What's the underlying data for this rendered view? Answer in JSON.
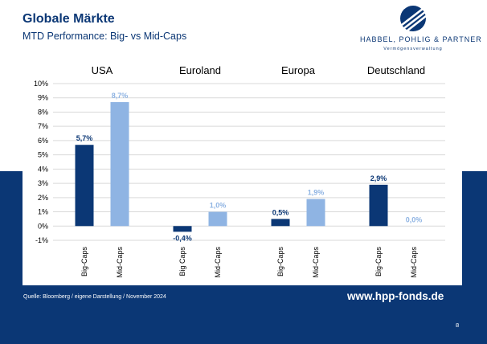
{
  "slide": {
    "title": "Globale Märkte",
    "subtitle": "MTD Performance: Big- vs Mid-Caps",
    "logo": {
      "name": "HABBEL, POHLIG & PARTNER",
      "tagline": "Vermögensverwaltung"
    },
    "source": "Quelle: Bloomberg / eigene Darstellung / November 2024",
    "website": "www.hpp-fonds.de",
    "page_number": "8"
  },
  "colors": {
    "navy": "#0b3775",
    "light_blue": "#8fb4e3",
    "grid": "#d9d9d9",
    "text": "#000000"
  },
  "chart_data": {
    "type": "bar",
    "title": "",
    "xlabel": "",
    "ylabel": "",
    "ylim": [
      -1,
      10
    ],
    "yticks": [
      -1,
      0,
      1,
      2,
      3,
      4,
      5,
      6,
      7,
      8,
      9,
      10
    ],
    "ytick_labels": [
      "-1%",
      "0%",
      "1%",
      "2%",
      "3%",
      "4%",
      "5%",
      "6%",
      "7%",
      "8%",
      "9%",
      "10%"
    ],
    "grid": true,
    "groups": [
      "USA",
      "Euroland",
      "Europa",
      "Deutschland"
    ],
    "bars": [
      {
        "group": "USA",
        "category": "Big-Caps",
        "value": 5.7,
        "label": "5,7%",
        "color": "#0b3775"
      },
      {
        "group": "USA",
        "category": "Mid-Caps",
        "value": 8.7,
        "label": "8,7%",
        "color": "#8fb4e3"
      },
      {
        "group": "Euroland",
        "category": "Big Caps",
        "value": -0.4,
        "label": "-0,4%",
        "color": "#0b3775"
      },
      {
        "group": "Euroland",
        "category": "Mid-Caps",
        "value": 1.0,
        "label": "1,0%",
        "color": "#8fb4e3"
      },
      {
        "group": "Europa",
        "category": "Big-Caps",
        "value": 0.5,
        "label": "0,5%",
        "color": "#0b3775"
      },
      {
        "group": "Europa",
        "category": "Mid-Caps",
        "value": 1.9,
        "label": "1,9%",
        "color": "#8fb4e3"
      },
      {
        "group": "Deutschland",
        "category": "Big-Caps",
        "value": 2.9,
        "label": "2,9%",
        "color": "#0b3775"
      },
      {
        "group": "Deutschland",
        "category": "Mid-Caps",
        "value": 0.0,
        "label": "0,0%",
        "color": "#8fb4e3"
      }
    ]
  }
}
